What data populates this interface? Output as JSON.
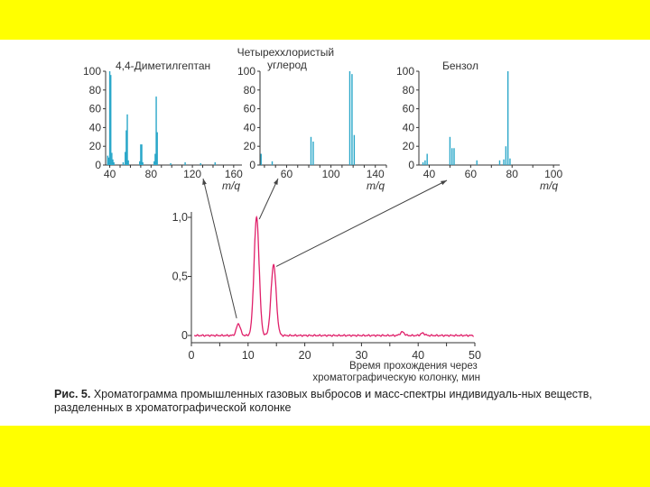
{
  "caption": {
    "label": "Рис. 5.",
    "text": "Хроматограмма промышленных газовых выбросов и масс-спектры индивидуаль-ных веществ, разделенных в хроматографической колонке"
  },
  "chart_data": [
    {
      "type": "bar",
      "title": "4,4-Диметилгептан",
      "xlabel": "m/q",
      "xlim": [
        36,
        168
      ],
      "ylim": [
        0,
        100
      ],
      "xticks": [
        40,
        80,
        120,
        160
      ],
      "yticks": [
        0,
        20,
        40,
        60,
        80,
        100
      ],
      "color": "#2aa7c9",
      "x": [
        38,
        39,
        40,
        41,
        42,
        43,
        44,
        53,
        55,
        56,
        57,
        58,
        69,
        70,
        71,
        72,
        83,
        84,
        85,
        86,
        99,
        113,
        128,
        142
      ],
      "values": [
        10,
        8,
        100,
        96,
        13,
        6,
        3,
        3,
        14,
        37,
        54,
        5,
        4,
        22,
        22,
        3,
        4,
        12,
        73,
        35,
        2,
        3,
        2,
        3
      ]
    },
    {
      "type": "bar",
      "title": "Четыреххлористый углерод",
      "xlabel": "m/q",
      "xlim": [
        36,
        150
      ],
      "ylim": [
        0,
        100
      ],
      "xticks": [
        60,
        100,
        140
      ],
      "yticks": [
        0,
        20,
        40,
        60,
        80,
        100
      ],
      "color": "#2aa7c9",
      "x": [
        35,
        37,
        47,
        82,
        84,
        117,
        119,
        121
      ],
      "values": [
        36,
        12,
        4,
        30,
        25,
        100,
        97,
        32
      ]
    },
    {
      "type": "bar",
      "title": "Бензол",
      "xlabel": "m/q",
      "xlim": [
        35,
        103
      ],
      "ylim": [
        0,
        100
      ],
      "xticks": [
        40,
        60,
        80,
        100
      ],
      "yticks": [
        0,
        20,
        40,
        60,
        80,
        100
      ],
      "color": "#2aa7c9",
      "x": [
        37,
        38,
        39,
        50,
        51,
        52,
        63,
        74,
        76,
        77,
        78,
        79
      ],
      "values": [
        3,
        5,
        12,
        30,
        18,
        18,
        5,
        5,
        6,
        20,
        100,
        7
      ]
    },
    {
      "type": "line",
      "xlabel": "Время прохождения через хроматографическую колонку, мин",
      "xlim": [
        0,
        50
      ],
      "ylim": [
        0,
        1.0
      ],
      "xticks": [
        0,
        10,
        20,
        30,
        40,
        50
      ],
      "ytick_labels": [
        "0",
        "0,5",
        "1,0"
      ],
      "yticks": [
        0,
        0.5,
        1.0
      ],
      "color": "#e0206a",
      "peaks": [
        {
          "x": 8.3,
          "height": 0.1
        },
        {
          "x": 11.5,
          "height": 1.0
        },
        {
          "x": 14.5,
          "height": 0.6
        },
        {
          "x": 37.2,
          "height": 0.03
        },
        {
          "x": 40.8,
          "height": 0.02
        }
      ]
    }
  ]
}
